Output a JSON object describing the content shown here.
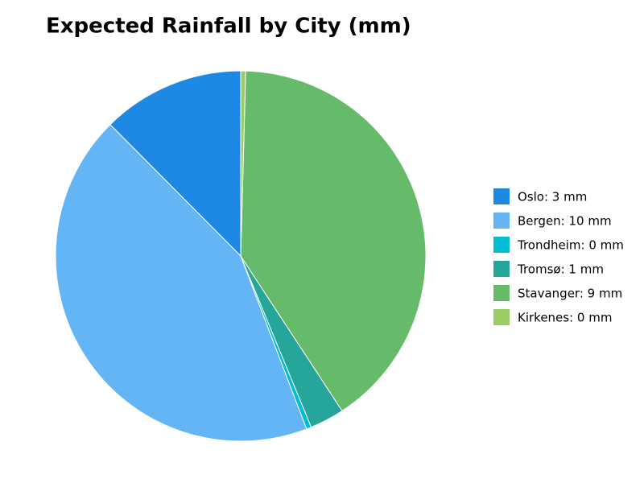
{
  "chart_data": {
    "type": "pie",
    "title": "Expected Rainfall by City (mm)",
    "values": [
      2.9,
      10.1,
      0.1,
      0.7,
      9.4,
      0.1
    ],
    "value_labels": [
      "Oslo: 3 mm",
      "Bergen: 10 mm",
      "Trondheim: 0 mm",
      "Tromsø: 1 mm",
      "Stavanger: 9 mm",
      "Kirkenes: 0 mm"
    ],
    "colors": [
      "#1e88e5",
      "#64b5f6",
      "#00bcd4",
      "#26a69a",
      "#66bb6a",
      "#9ccc65"
    ],
    "legend": "right"
  }
}
